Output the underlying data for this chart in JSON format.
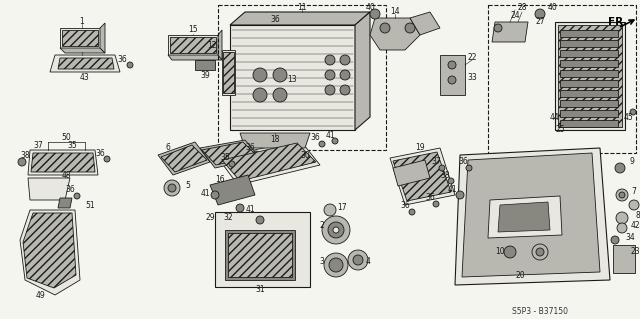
{
  "bg_color": "#f5f5f0",
  "diagram_code": "S5P3 - B37150",
  "fig_width": 6.4,
  "fig_height": 3.19,
  "dpi": 100,
  "font_size_label": 5.5,
  "font_size_code": 5.5,
  "font_size_fr": 7.5,
  "lc": "#1a1a1a",
  "fill_part": "#d8d8d0",
  "fill_dark": "#888880",
  "fill_mid": "#b8b8b0",
  "fill_light": "#e8e8e0"
}
